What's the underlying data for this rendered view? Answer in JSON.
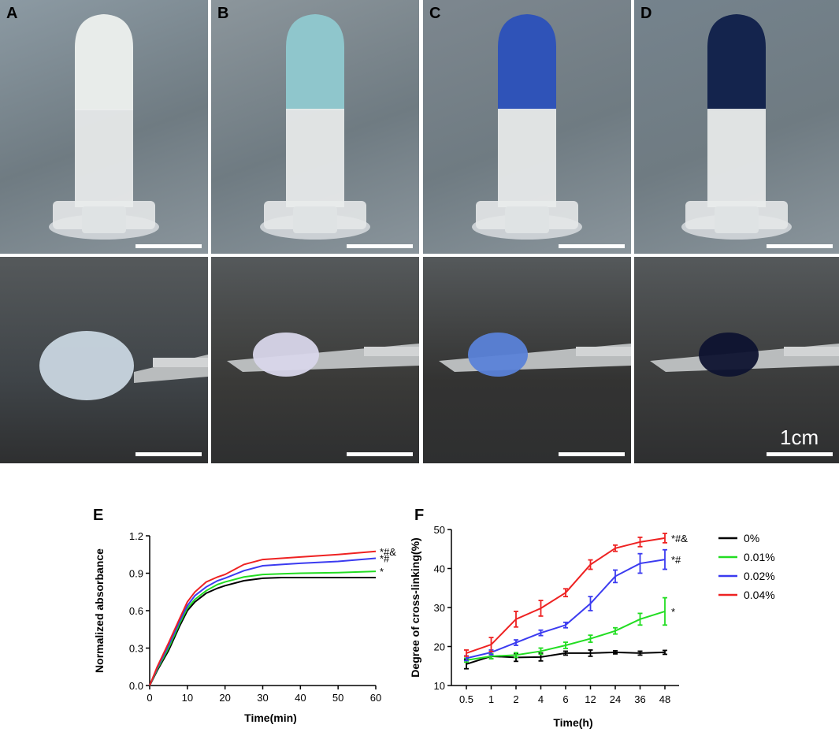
{
  "figure": {
    "panels": [
      {
        "letter": "A",
        "tube_fill": "#e8ecea",
        "drop_fill": "#c9d6e0",
        "bg_top": "#8c9aa3",
        "bg_bottom": "#3f4448"
      },
      {
        "letter": "B",
        "tube_fill": "#8fc6cc",
        "drop_fill": "#d8d6ea",
        "bg_top": "#8c969c",
        "bg_bottom": "#3a3a38"
      },
      {
        "letter": "C",
        "tube_fill": "#2f53b8",
        "drop_fill": "#5a82d8",
        "bg_top": "#7d878f",
        "bg_bottom": "#333332"
      },
      {
        "letter": "D",
        "tube_fill": "#14244d",
        "drop_fill": "#0e1330",
        "bg_top": "#75838d",
        "bg_bottom": "#3b3c3c"
      }
    ],
    "scale_label": "1cm"
  },
  "chart_data": [
    {
      "panel_letter": "E",
      "type": "line",
      "xlabel": "Time(min)",
      "ylabel": "Normalized absorbance",
      "xlim": [
        0,
        60
      ],
      "ylim": [
        0,
        1.2
      ],
      "xticks": [
        "0",
        "10",
        "20",
        "30",
        "40",
        "50",
        "60"
      ],
      "yticks": [
        "0.0",
        "0.3",
        "0.6",
        "0.9",
        "1.2"
      ],
      "series": [
        {
          "color": "#000000",
          "x": [
            0,
            2,
            5,
            8,
            10,
            12,
            15,
            18,
            20,
            25,
            30,
            35,
            40,
            50,
            60
          ],
          "y": [
            0,
            0.12,
            0.28,
            0.48,
            0.6,
            0.67,
            0.74,
            0.78,
            0.8,
            0.84,
            0.86,
            0.865,
            0.865,
            0.865,
            0.865
          ],
          "annotation": ""
        },
        {
          "color": "#22dd22",
          "x": [
            0,
            2,
            5,
            8,
            10,
            12,
            15,
            18,
            20,
            25,
            30,
            35,
            40,
            50,
            60
          ],
          "y": [
            0,
            0.13,
            0.3,
            0.5,
            0.62,
            0.69,
            0.76,
            0.81,
            0.83,
            0.87,
            0.89,
            0.895,
            0.9,
            0.905,
            0.915
          ],
          "annotation": "*"
        },
        {
          "color": "#3b3bf0",
          "x": [
            0,
            2,
            5,
            8,
            10,
            12,
            15,
            18,
            20,
            25,
            30,
            35,
            40,
            50,
            60
          ],
          "y": [
            0,
            0.14,
            0.32,
            0.52,
            0.64,
            0.72,
            0.79,
            0.84,
            0.86,
            0.92,
            0.96,
            0.97,
            0.98,
            0.995,
            1.02
          ],
          "annotation": "*#"
        },
        {
          "color": "#ee2222",
          "x": [
            0,
            2,
            5,
            8,
            10,
            12,
            15,
            18,
            20,
            25,
            30,
            35,
            40,
            50,
            60
          ],
          "y": [
            0,
            0.15,
            0.34,
            0.54,
            0.67,
            0.75,
            0.83,
            0.87,
            0.89,
            0.97,
            1.01,
            1.02,
            1.03,
            1.05,
            1.075
          ],
          "annotation": "*#&"
        }
      ]
    },
    {
      "panel_letter": "F",
      "type": "line",
      "xlabel": "Time(h)",
      "ylabel": "Degree of cross-linking(%)",
      "categories": [
        "0.5",
        "1",
        "2",
        "4",
        "6",
        "12",
        "24",
        "36",
        "48"
      ],
      "ylim": [
        10,
        50
      ],
      "yticks": [
        "10",
        "20",
        "30",
        "40",
        "50"
      ],
      "legend_position": "right",
      "series": [
        {
          "name": "0%",
          "color": "#000000",
          "values": [
            15.5,
            17.5,
            17.2,
            17.3,
            18.3,
            18.3,
            18.5,
            18.3,
            18.5
          ],
          "errors": [
            1.2,
            0.6,
            1.0,
            1.0,
            0.5,
            0.8,
            0.4,
            0.5,
            0.5
          ],
          "annotation": ""
        },
        {
          "name": "0.01%",
          "color": "#22dd22",
          "values": [
            16.5,
            17.5,
            17.8,
            18.8,
            20.3,
            22.0,
            24.0,
            27.0,
            29.0
          ],
          "errors": [
            0.5,
            0.6,
            0.6,
            0.8,
            0.8,
            0.9,
            0.8,
            1.5,
            3.5
          ],
          "annotation": "*"
        },
        {
          "name": "0.02%",
          "color": "#3b3bf0",
          "values": [
            17.0,
            18.5,
            21.0,
            23.5,
            25.5,
            31.0,
            38.0,
            41.3,
            42.3
          ],
          "errors": [
            0.6,
            0.6,
            0.7,
            0.7,
            0.7,
            1.8,
            1.6,
            2.5,
            2.5
          ],
          "annotation": "*#"
        },
        {
          "name": "0.04%",
          "color": "#ee2222",
          "values": [
            18.3,
            20.5,
            27.0,
            29.8,
            33.8,
            41.0,
            45.2,
            46.8,
            47.8
          ],
          "errors": [
            0.8,
            1.8,
            2.0,
            2.0,
            1.0,
            1.2,
            0.8,
            1.2,
            1.2
          ],
          "annotation": "*#&"
        }
      ]
    }
  ]
}
